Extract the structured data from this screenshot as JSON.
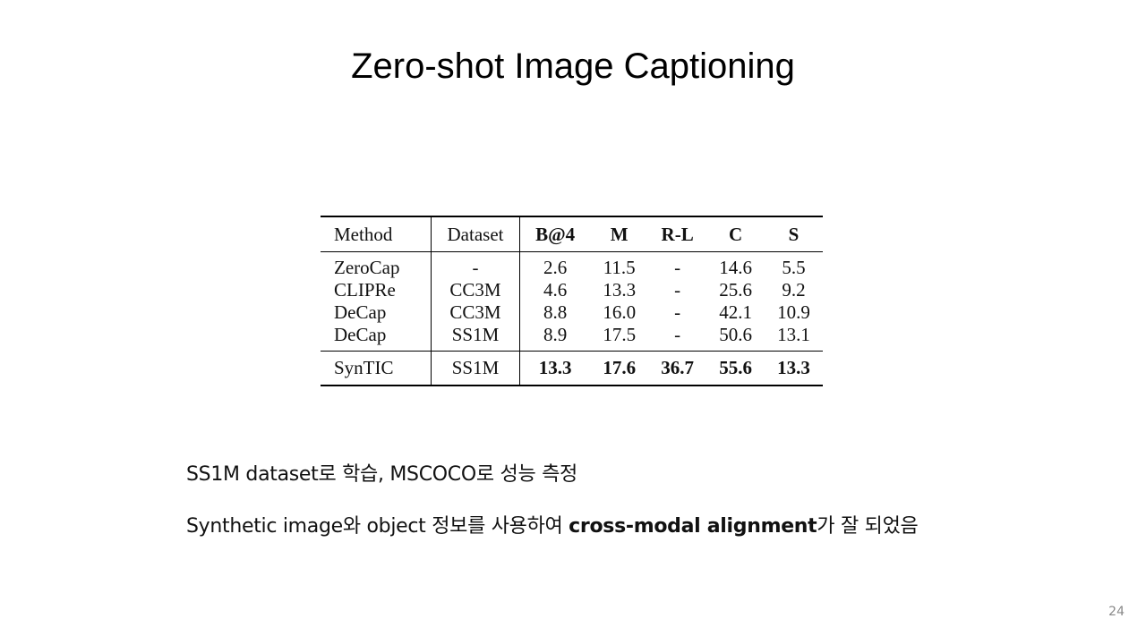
{
  "slide": {
    "title": "Zero-shot Image Captioning",
    "page_number": "24"
  },
  "table": {
    "headers": [
      "Method",
      "Dataset",
      "B@4",
      "M",
      "R-L",
      "C",
      "S"
    ],
    "rows": [
      [
        "ZeroCap",
        "-",
        "2.6",
        "11.5",
        "-",
        "14.6",
        "5.5"
      ],
      [
        "CLIPRe",
        "CC3M",
        "4.6",
        "13.3",
        "-",
        "25.6",
        "9.2"
      ],
      [
        "DeCap",
        "CC3M",
        "8.8",
        "16.0",
        "-",
        "42.1",
        "10.9"
      ],
      [
        "DeCap",
        "SS1M",
        "8.9",
        "17.5",
        "-",
        "50.6",
        "13.1"
      ]
    ],
    "ours": [
      "SynTIC",
      "SS1M",
      "13.3",
      "17.6",
      "36.7",
      "55.6",
      "13.3"
    ]
  },
  "notes": {
    "line1": "SS1M dataset로 학습, MSCOCO로 성능 측정",
    "line2_prefix": "Synthetic image와 object 정보를 사용하여 ",
    "line2_bold": "cross-modal alignment",
    "line2_suffix": "가 잘 되었음"
  }
}
